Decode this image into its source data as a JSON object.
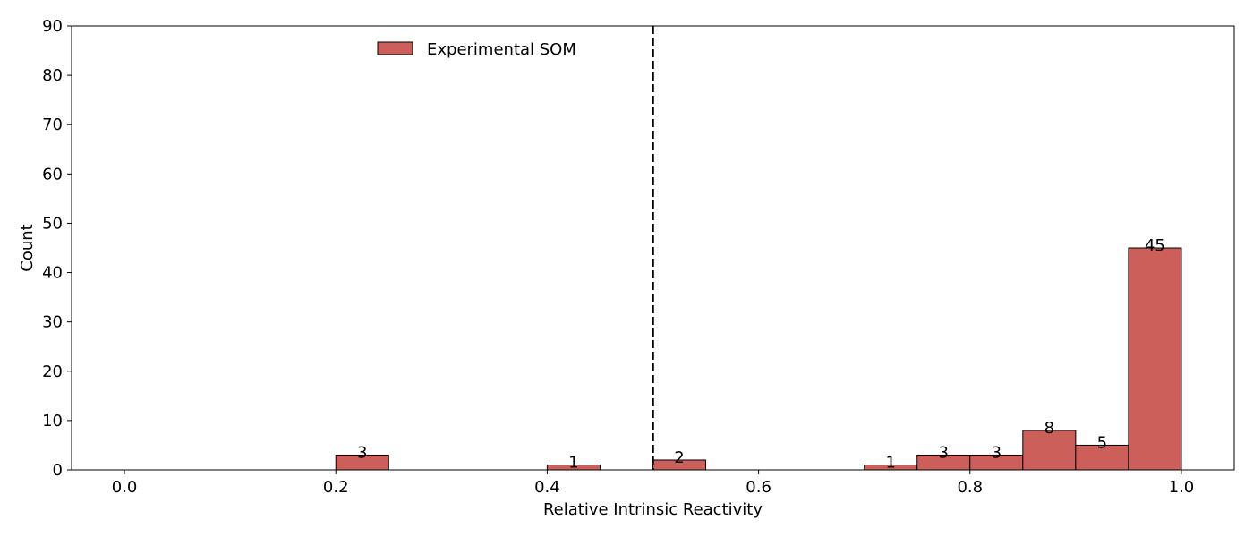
{
  "chart_data": {
    "type": "bar",
    "title": "",
    "xlabel": "Relative Intrinsic Reactivity",
    "ylabel": "Count",
    "xlim": [
      -0.05,
      1.05
    ],
    "ylim": [
      0,
      90
    ],
    "xticks": [
      0.0,
      0.2,
      0.4,
      0.6,
      0.8,
      1.0
    ],
    "xtick_labels": [
      "0.0",
      "0.2",
      "0.4",
      "0.6",
      "0.8",
      "1.0"
    ],
    "yticks": [
      0,
      10,
      20,
      30,
      40,
      50,
      60,
      70,
      80,
      90
    ],
    "ytick_labels": [
      "0",
      "10",
      "20",
      "30",
      "40",
      "50",
      "60",
      "70",
      "80",
      "90"
    ],
    "bin_width": 0.05,
    "bins": [
      {
        "start": 0.2,
        "end": 0.25,
        "count": 3,
        "label": "3"
      },
      {
        "start": 0.4,
        "end": 0.45,
        "count": 1,
        "label": "1"
      },
      {
        "start": 0.5,
        "end": 0.55,
        "count": 2,
        "label": "2"
      },
      {
        "start": 0.7,
        "end": 0.75,
        "count": 1,
        "label": "1"
      },
      {
        "start": 0.75,
        "end": 0.8,
        "count": 3,
        "label": "3"
      },
      {
        "start": 0.8,
        "end": 0.85,
        "count": 3,
        "label": "3"
      },
      {
        "start": 0.85,
        "end": 0.9,
        "count": 8,
        "label": "8"
      },
      {
        "start": 0.9,
        "end": 0.95,
        "count": 5,
        "label": "5"
      },
      {
        "start": 0.95,
        "end": 1.0,
        "count": 45,
        "label": "45"
      }
    ],
    "series": [
      {
        "name": "Experimental SOM",
        "color": "#cd5f5a",
        "edge_color": "#000000"
      }
    ],
    "reference_line": {
      "x": 0.5,
      "style": "dashed",
      "color": "#000000"
    },
    "legend": {
      "placement": "top-center",
      "entries": [
        "Experimental SOM"
      ]
    },
    "grid": false
  }
}
